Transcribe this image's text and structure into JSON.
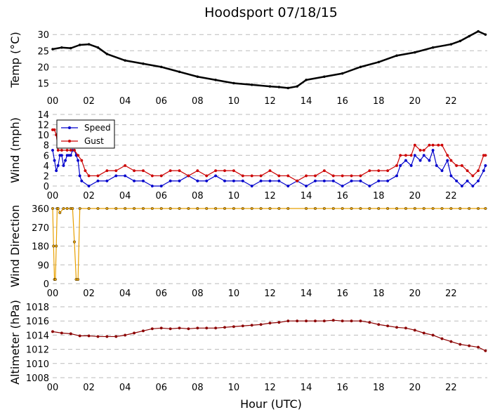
{
  "chart_data": {
    "type": "line",
    "title": "Hoodsport 07/18/15",
    "xlabel": "Hour (UTC)",
    "x_tick_labels": [
      "00",
      "02",
      "04",
      "06",
      "08",
      "10",
      "12",
      "14",
      "16",
      "18",
      "20",
      "22"
    ],
    "xlim": [
      0,
      24
    ],
    "grid": "horizontal dashed",
    "panels": [
      {
        "name": "temp",
        "ylabel": "Temp (°C)",
        "ylim": [
          12.5,
          32
        ],
        "yticks": [
          "15",
          "20",
          "25",
          "30"
        ],
        "series": [
          {
            "color": "#000000",
            "marker": "dot",
            "x": [
              0,
              0.5,
              1,
              1.5,
              2,
              2.5,
              3,
              4,
              5,
              6,
              7,
              8,
              9,
              10,
              11,
              12,
              12.5,
              13,
              13.5,
              14,
              15,
              16,
              17,
              18,
              19,
              20,
              21,
              22,
              22.5,
              23,
              23.5,
              23.9
            ],
            "y": [
              25.5,
              26,
              25.8,
              26.8,
              27,
              26,
              24,
              22,
              21,
              20,
              18.5,
              17,
              16,
              15,
              14.5,
              14,
              13.8,
              13.5,
              14,
              16,
              17,
              18,
              20,
              21.5,
              23.5,
              24.5,
              26,
              27,
              28,
              29.5,
              31,
              30
            ]
          }
        ]
      },
      {
        "name": "wind",
        "ylabel": "Wind (mph)",
        "ylim": [
          0,
          14
        ],
        "yticks": [
          "0",
          "2",
          "4",
          "6",
          "8",
          "10",
          "12",
          "14"
        ],
        "legend": {
          "position": "top-left",
          "entries": [
            "Speed",
            "Gust"
          ]
        },
        "series": [
          {
            "name": "Speed",
            "color": "#0000cc",
            "x": [
              0,
              0.1,
              0.2,
              0.3,
              0.4,
              0.5,
              0.6,
              0.7,
              0.8,
              0.9,
              1,
              1.1,
              1.2,
              1.3,
              1.4,
              1.5,
              1.6,
              2,
              2.5,
              3,
              3.5,
              4,
              4.5,
              5,
              5.5,
              6,
              6.5,
              7,
              7.5,
              8,
              8.5,
              9,
              9.5,
              10,
              10.5,
              11,
              11.5,
              12,
              12.5,
              13,
              13.5,
              14,
              14.5,
              15,
              15.5,
              16,
              16.5,
              17,
              17.5,
              18,
              18.5,
              19,
              19.2,
              19.5,
              19.8,
              20,
              20.3,
              20.5,
              20.8,
              21,
              21.2,
              21.5,
              21.8,
              22,
              22.3,
              22.6,
              22.9,
              23.2,
              23.5,
              23.8,
              23.9
            ],
            "y": [
              7,
              5,
              3,
              4,
              6,
              6,
              4,
              5,
              6,
              6,
              6,
              7,
              7,
              6,
              5,
              2,
              1,
              0,
              1,
              1,
              2,
              2,
              1,
              1,
              0,
              0,
              1,
              1,
              2,
              1,
              1,
              2,
              1,
              1,
              1,
              0,
              1,
              1,
              1,
              0,
              1,
              0,
              1,
              1,
              1,
              0,
              1,
              1,
              0,
              1,
              1,
              2,
              4,
              5,
              4,
              6,
              5,
              6,
              5,
              7,
              4,
              3,
              5,
              2,
              1,
              0,
              1,
              0,
              1,
              3,
              4
            ]
          },
          {
            "name": "Gust",
            "color": "#cc0000",
            "x": [
              0,
              0.1,
              0.2,
              0.3,
              0.5,
              0.8,
              1,
              1.2,
              1.4,
              1.6,
              1.8,
              2,
              2.5,
              3,
              3.5,
              4,
              4.5,
              5,
              5.5,
              6,
              6.5,
              7,
              7.5,
              8,
              8.5,
              9,
              9.5,
              10,
              10.5,
              11,
              11.5,
              12,
              12.5,
              13,
              13.5,
              14,
              14.5,
              15,
              15.5,
              16,
              16.5,
              17,
              17.5,
              18,
              18.5,
              19,
              19.2,
              19.5,
              19.8,
              20,
              20.3,
              20.5,
              20.8,
              21,
              21.3,
              21.5,
              21.8,
              22,
              22.3,
              22.6,
              22.9,
              23.2,
              23.5,
              23.8,
              23.9
            ],
            "y": [
              11,
              11,
              10,
              7,
              7,
              7,
              7,
              7,
              6,
              5,
              3,
              2,
              2,
              3,
              3,
              4,
              3,
              3,
              2,
              2,
              3,
              3,
              2,
              3,
              2,
              3,
              3,
              3,
              2,
              2,
              2,
              3,
              2,
              2,
              1,
              2,
              2,
              3,
              2,
              2,
              2,
              2,
              3,
              3,
              3,
              4,
              6,
              6,
              6,
              8,
              7,
              7,
              8,
              8,
              8,
              8,
              6,
              5,
              4,
              4,
              3,
              2,
              3,
              6,
              6
            ]
          }
        ]
      },
      {
        "name": "direction",
        "ylabel": "Wind Direction",
        "ylim": [
          0,
          360
        ],
        "yticks": [
          "0",
          "90",
          "180",
          "270",
          "360"
        ],
        "series": [
          {
            "color": "#e8a000",
            "x": [
              0,
              0.05,
              0.1,
              0.15,
              0.2,
              0.25,
              0.3,
              0.4,
              0.6,
              0.8,
              1,
              1.1,
              1.2,
              1.3,
              1.4,
              1.5,
              2,
              2.5,
              3,
              3.5,
              4,
              4.5,
              5,
              5.5,
              6,
              6.5,
              7,
              7.5,
              8,
              8.5,
              9,
              9.5,
              10,
              10.5,
              11,
              11.5,
              12,
              12.5,
              13,
              14,
              14.5,
              15,
              15.5,
              16,
              16.5,
              17,
              17.5,
              18,
              18.5,
              19,
              19.5,
              20,
              20.5,
              21,
              21.5,
              22,
              22.5,
              23,
              23.5,
              23.9
            ],
            "y": [
              360,
              180,
              20,
              20,
              180,
              360,
              360,
              340,
              360,
              360,
              360,
              360,
              200,
              20,
              20,
              360,
              360,
              360,
              360,
              360,
              360,
              360,
              360,
              360,
              360,
              360,
              360,
              360,
              360,
              360,
              360,
              360,
              360,
              360,
              360,
              360,
              360,
              360,
              360,
              360,
              360,
              360,
              360,
              360,
              360,
              360,
              360,
              360,
              360,
              360,
              360,
              360,
              360,
              360,
              360,
              360,
              360,
              360,
              360,
              360
            ]
          }
        ]
      },
      {
        "name": "altimeter",
        "ylabel": "Altimeter (hPa)",
        "ylim": [
          1008,
          1018
        ],
        "yticks": [
          "1008",
          "1010",
          "1012",
          "1014",
          "1016",
          "1018"
        ],
        "series": [
          {
            "color": "#8b0000",
            "x": [
              0,
              0.5,
              1,
              1.5,
              2,
              2.5,
              3,
              3.5,
              4,
              4.5,
              5,
              5.5,
              6,
              6.5,
              7,
              7.5,
              8,
              8.5,
              9,
              9.5,
              10,
              10.5,
              11,
              11.5,
              12,
              12.5,
              13,
              13.5,
              14,
              14.5,
              15,
              15.5,
              16,
              16.5,
              17,
              17.5,
              18,
              18.5,
              19,
              19.5,
              20,
              20.5,
              21,
              21.5,
              22,
              22.5,
              23,
              23.5,
              23.9
            ],
            "y": [
              1014.5,
              1014.3,
              1014.2,
              1013.9,
              1013.9,
              1013.8,
              1013.8,
              1013.8,
              1014,
              1014.3,
              1014.6,
              1014.9,
              1015,
              1014.9,
              1015,
              1014.9,
              1015,
              1015,
              1015,
              1015.1,
              1015.2,
              1015.3,
              1015.4,
              1015.5,
              1015.7,
              1015.8,
              1016,
              1016,
              1016,
              1016,
              1016,
              1016.1,
              1016,
              1016,
              1016,
              1015.8,
              1015.5,
              1015.3,
              1015.1,
              1015,
              1014.7,
              1014.3,
              1014,
              1013.5,
              1013.1,
              1012.7,
              1012.5,
              1012.3,
              1011.8
            ]
          }
        ]
      }
    ]
  }
}
